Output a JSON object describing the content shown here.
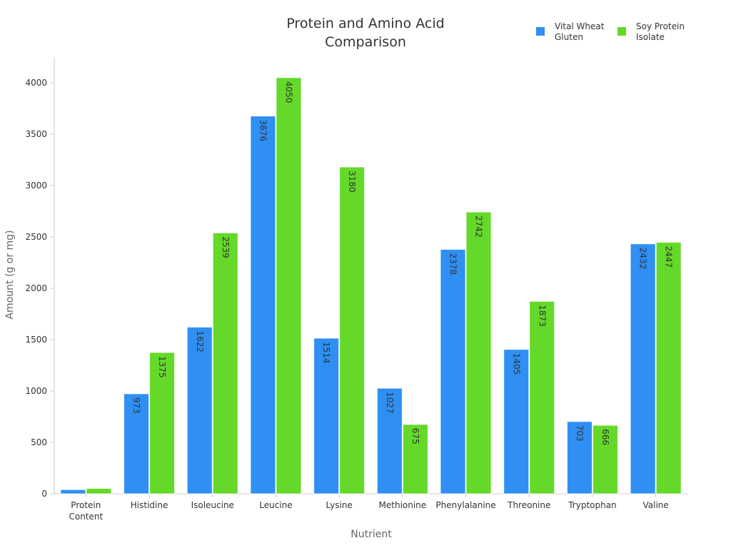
{
  "colors": {
    "series_1": "#2f8ff2",
    "series_2": "#64d92a",
    "axis": "#cccccc",
    "text": "#333333",
    "muted_text": "#666666"
  },
  "chart_data": {
    "type": "bar",
    "title": "Protein and Amino Acid Comparison",
    "xlabel": "Nutrient",
    "ylabel": "Amount (g or mg)",
    "categories": [
      "Protein Content",
      "Histidine",
      "Isoleucine",
      "Leucine",
      "Lysine",
      "Methionine",
      "Phenylalanine",
      "Threonine",
      "Tryptophan",
      "Valine"
    ],
    "series": [
      {
        "name": "Vital Wheat Gluten",
        "values": [
          40,
          973,
          1622,
          3676,
          1514,
          1027,
          2378,
          1405,
          703,
          2432
        ]
      },
      {
        "name": "Soy Protein Isolate",
        "values": [
          52,
          1375,
          2539,
          4050,
          3180,
          675,
          2742,
          1873,
          666,
          2447
        ]
      }
    ],
    "value_labels": [
      [
        "",
        "973",
        "1622",
        "3676",
        "1514",
        "1027",
        "2378",
        "1405",
        "703",
        "2432"
      ],
      [
        "",
        "1375",
        "2539",
        "4050",
        "3180",
        "675",
        "2742",
        "1873",
        "666",
        "2447"
      ]
    ],
    "ylim": [
      0,
      4250
    ],
    "yticks": [
      0,
      500,
      1000,
      1500,
      2000,
      2500,
      3000,
      3500,
      4000
    ],
    "ytick_labels": [
      "0",
      "500",
      "1000",
      "1500",
      "2000",
      "2500",
      "3000",
      "3500",
      "4000"
    ],
    "xtick_labels": [
      "Protein\nContent",
      "Histidine",
      "Isoleucine",
      "Leucine",
      "Lysine",
      "Methionine",
      "Phenylalanine",
      "Threonine",
      "Tryptophan",
      "Valine"
    ],
    "grid": false,
    "legend_position": "top-right"
  }
}
